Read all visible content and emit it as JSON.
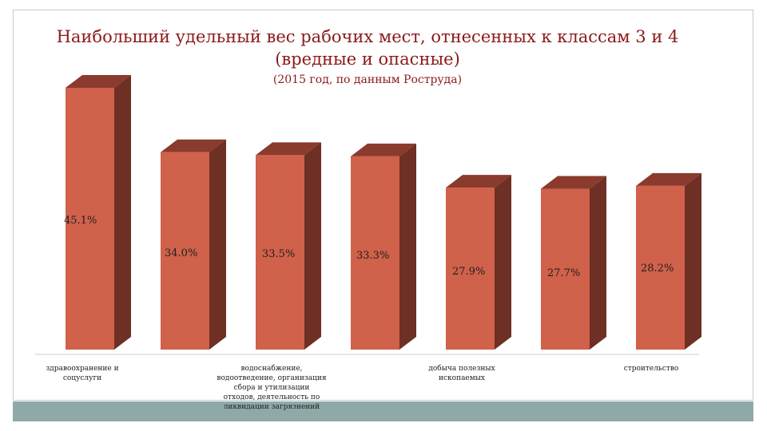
{
  "title": "Наибольший удельный вес рабочих мест, отнесенных к классам 3 и 4 (вредные и опасные)",
  "subtitle": "(2015 год, по данным Роструда)",
  "colors": {
    "bar_front": "#d0614a",
    "bar_side": "#6e2f24",
    "bar_top": "#8a3b2d",
    "title": "#8b1a1a",
    "footer_band": "#8fa9a9"
  },
  "chart_data": {
    "type": "bar",
    "categories": [
      "здравоохранение и соцуслуги",
      "",
      "водоснабжение, водоотведение, организация сбора и утилизации отходов, деятельность по ликвидации загрязнений",
      "",
      "добыча полезных ископаемых",
      "",
      "строительство"
    ],
    "values": [
      45.1,
      34.0,
      33.5,
      33.3,
      27.9,
      27.7,
      28.2
    ],
    "data_labels": [
      "45.1%",
      "34.0%",
      "33.5%",
      "33.3%",
      "27.9%",
      "27.7%",
      "28.2%"
    ],
    "ylim": [
      0,
      47
    ],
    "grid": false,
    "legend": "none"
  }
}
